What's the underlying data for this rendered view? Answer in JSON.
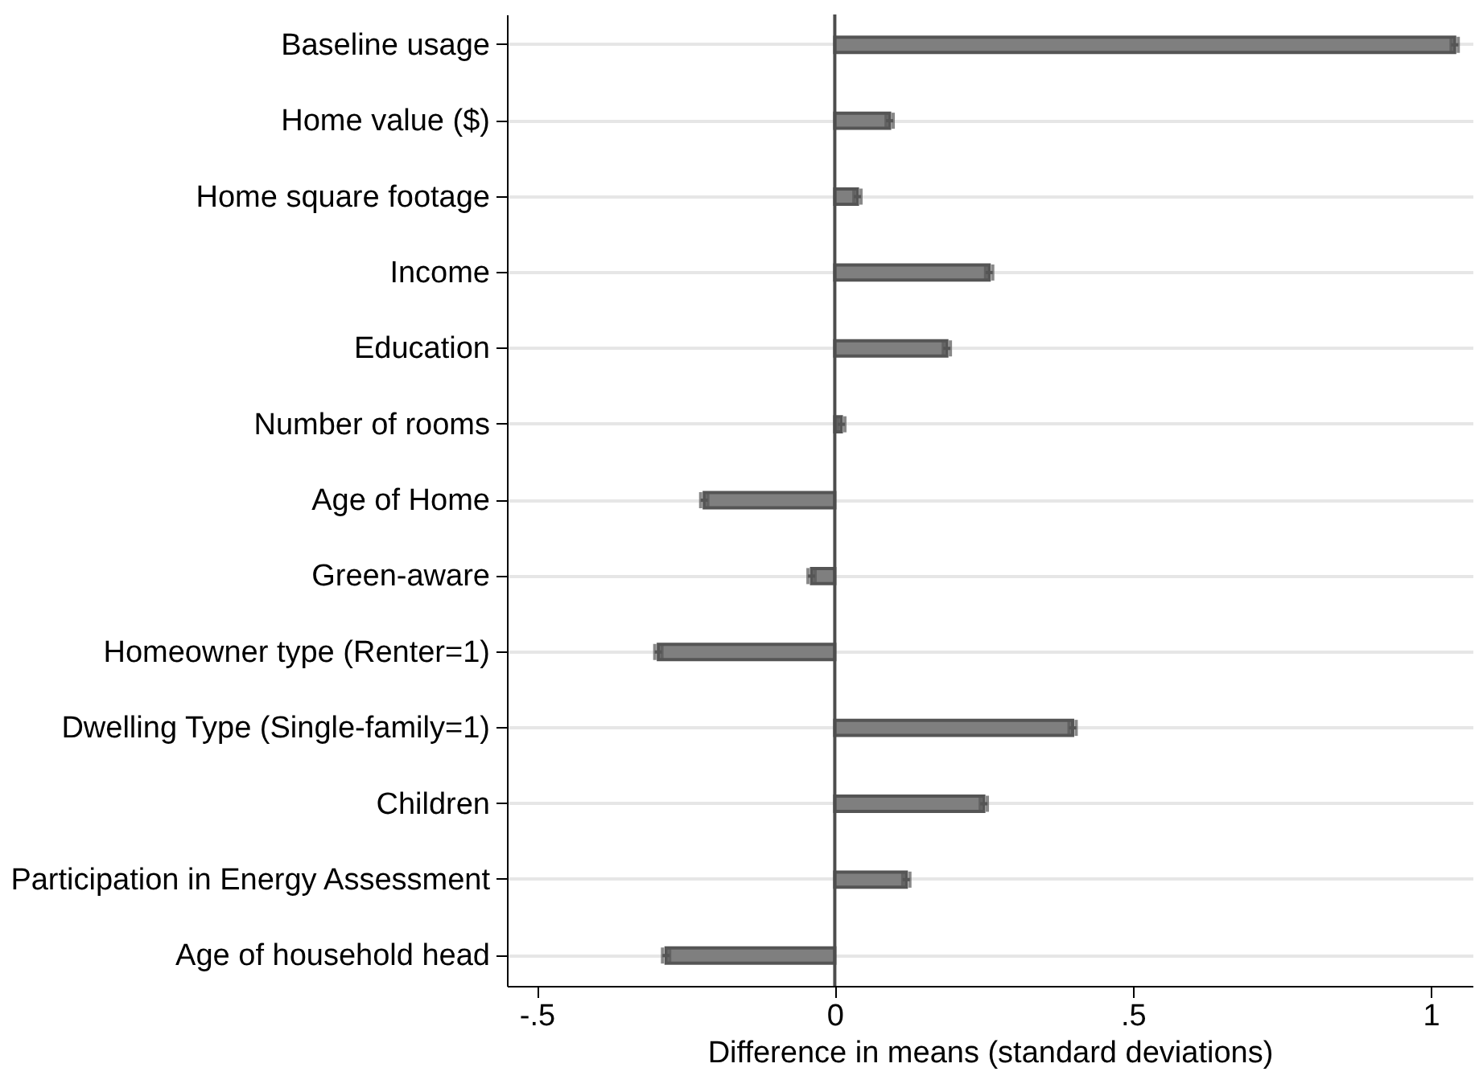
{
  "chart_data": {
    "type": "bar",
    "orientation": "horizontal",
    "xlabel": "Difference in means (standard deviations)",
    "categories": [
      "Baseline usage",
      "Home value ($)",
      "Home square footage",
      "Income",
      "Education",
      "Number of rooms",
      "Age of Home",
      "Green-aware",
      "Homeowner type (Renter=1)",
      "Dwelling Type (Single-family=1)",
      "Children",
      "Participation in Energy Assessment",
      "Age of household head"
    ],
    "values": [
      1.04,
      0.092,
      0.038,
      0.259,
      0.188,
      0.011,
      -0.219,
      -0.039,
      -0.296,
      0.399,
      0.25,
      0.12,
      -0.283
    ],
    "errors": [
      0.006,
      0.006,
      0.006,
      0.006,
      0.006,
      0.006,
      0.006,
      0.006,
      0.006,
      0.006,
      0.006,
      0.006,
      0.006
    ],
    "color": "#7f7f7f",
    "xlim": [
      -0.55,
      1.07
    ],
    "xticks": [
      {
        "value": -0.5,
        "label": "-.5"
      },
      0,
      {
        "value": 0.5,
        "label": ".5"
      },
      1
    ],
    "ref_lines": [
      {
        "axis": "x",
        "value": 0,
        "color": "#4d4d4d"
      }
    ],
    "grid": "y"
  }
}
